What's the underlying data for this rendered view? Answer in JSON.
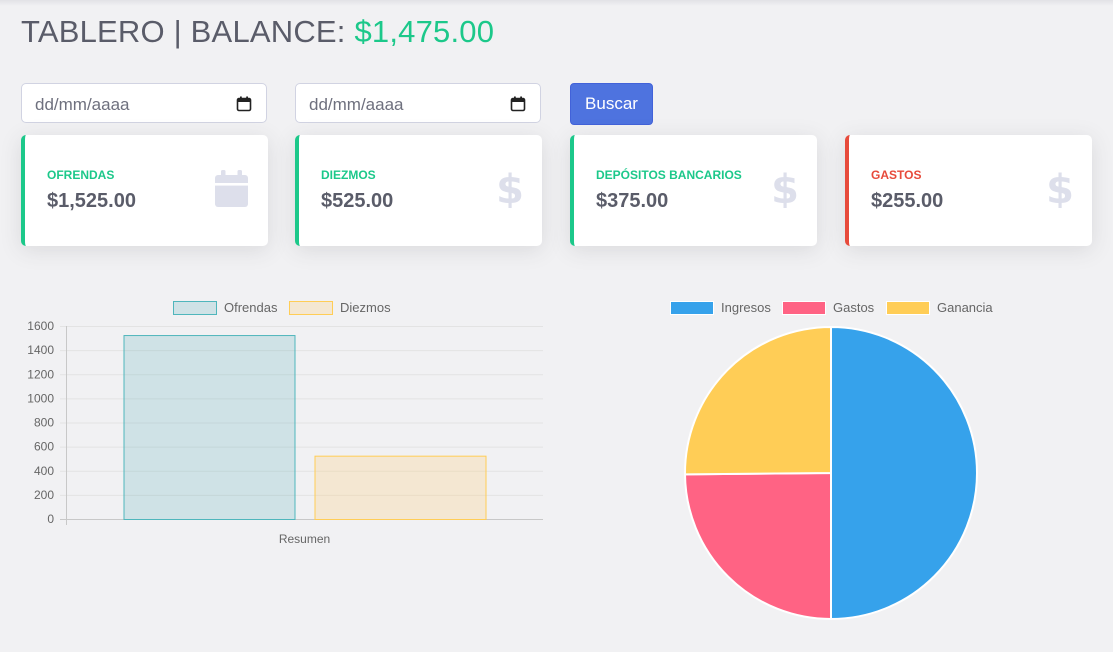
{
  "header": {
    "title_prefix": "TABLERO | BALANCE: ",
    "balance": "$1,475.00"
  },
  "filters": {
    "date_from_placeholder": "dd/mm/aaaa",
    "date_to_placeholder": "dd/mm/aaaa",
    "search_label": "Buscar"
  },
  "cards": [
    {
      "label": "OFRENDAS",
      "value": "$1,525.00",
      "icon": "calendar-icon"
    },
    {
      "label": "DIEZMOS",
      "value": "$525.00",
      "icon": "dollar-icon"
    },
    {
      "label": "DEPÓSITOS BANCARIOS",
      "value": "$375.00",
      "icon": "dollar-icon"
    },
    {
      "label": "GASTOS",
      "value": "$255.00",
      "icon": "dollar-icon"
    }
  ],
  "colors": {
    "success": "#1cc88a",
    "danger": "#e74a3b",
    "primary": "#4e73df",
    "text": "#5a5c69"
  },
  "chart_data": [
    {
      "type": "bar",
      "categories": [
        "Resumen"
      ],
      "series": [
        {
          "name": "Ofrendas",
          "values": [
            1525
          ],
          "fill": "rgba(75,172,178,0.2)",
          "stroke": "#4fb6bc"
        },
        {
          "name": "Diezmos",
          "values": [
            525
          ],
          "fill": "rgba(255,205,110,0.25)",
          "stroke": "#ffcd56"
        }
      ],
      "ylim": [
        0,
        1600
      ],
      "yticks": [
        0,
        200,
        400,
        600,
        800,
        1000,
        1200,
        1400,
        1600
      ],
      "grid": true,
      "legend": "top"
    },
    {
      "type": "pie",
      "labels": [
        "Ingresos",
        "Gastos",
        "Ganancia"
      ],
      "values": [
        1730,
        860,
        870
      ],
      "colors": [
        "#36a2eb",
        "#ff6384",
        "#ffcd56"
      ],
      "legend": "top"
    }
  ]
}
